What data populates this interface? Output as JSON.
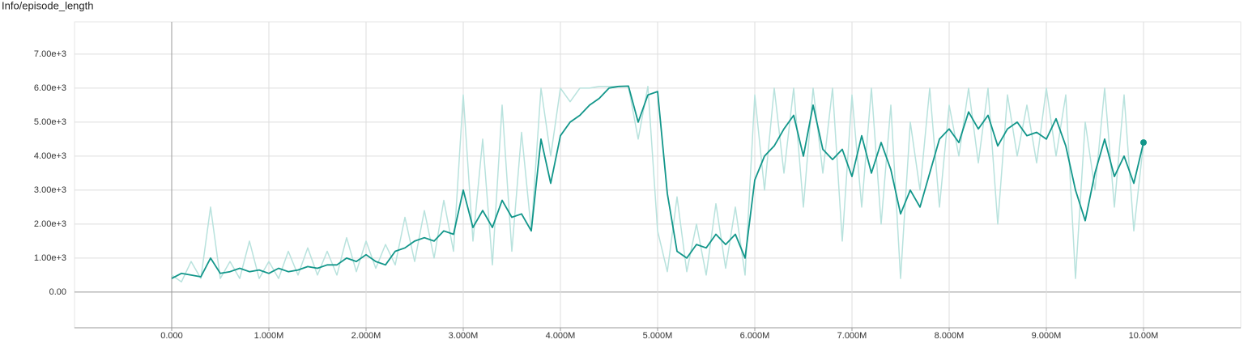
{
  "chart_data": {
    "type": "line",
    "title": "Info/episode_length",
    "x": [
      0,
      100000,
      200000,
      300000,
      400000,
      500000,
      600000,
      700000,
      800000,
      900000,
      1000000,
      1100000,
      1200000,
      1300000,
      1400000,
      1500000,
      1600000,
      1700000,
      1800000,
      1900000,
      2000000,
      2100000,
      2200000,
      2300000,
      2400000,
      2500000,
      2600000,
      2700000,
      2800000,
      2900000,
      3000000,
      3100000,
      3200000,
      3300000,
      3400000,
      3500000,
      3600000,
      3700000,
      3800000,
      3900000,
      4000000,
      4100000,
      4200000,
      4300000,
      4400000,
      4500000,
      4600000,
      4700000,
      4800000,
      4900000,
      5000000,
      5100000,
      5200000,
      5300000,
      5400000,
      5500000,
      5600000,
      5700000,
      5800000,
      5900000,
      6000000,
      6100000,
      6200000,
      6300000,
      6400000,
      6500000,
      6600000,
      6700000,
      6800000,
      6900000,
      7000000,
      7100000,
      7200000,
      7300000,
      7400000,
      7500000,
      7600000,
      7700000,
      7800000,
      7900000,
      8000000,
      8100000,
      8200000,
      8300000,
      8400000,
      8500000,
      8600000,
      8700000,
      8800000,
      8900000,
      9000000,
      9100000,
      9200000,
      9300000,
      9400000,
      9500000,
      9600000,
      9700000,
      9800000,
      9900000,
      10000000
    ],
    "series": [
      {
        "color": "#b8e2dd",
        "values": [
          500,
          300,
          900,
          400,
          2500,
          400,
          900,
          400,
          1500,
          400,
          900,
          400,
          1200,
          500,
          1300,
          500,
          1200,
          500,
          1600,
          600,
          1500,
          700,
          1400,
          800,
          2200,
          900,
          2400,
          1000,
          2700,
          1200,
          5800,
          1500,
          4500,
          800,
          5500,
          1200,
          4700,
          1800,
          6000,
          4000,
          6000,
          5600,
          6000,
          6000,
          6050,
          6050,
          6050,
          6050,
          4500,
          6050,
          1800,
          600,
          2800,
          600,
          2000,
          500,
          2600,
          700,
          2500,
          500,
          5800,
          3000,
          6000,
          3500,
          6000,
          2500,
          6000,
          3500,
          6000,
          1500,
          5800,
          2500,
          6000,
          2000,
          5500,
          400,
          5000,
          3000,
          6000,
          2500,
          5500,
          4000,
          6000,
          3800,
          6000,
          2000,
          5800,
          4000,
          5500,
          3800,
          6000,
          4000,
          5800,
          400,
          5000,
          3000,
          6000,
          2500,
          5800,
          1800,
          4400
        ]
      },
      {
        "color": "#12968a",
        "values": [
          400,
          550,
          500,
          450,
          1000,
          550,
          600,
          700,
          600,
          650,
          550,
          700,
          600,
          650,
          750,
          700,
          800,
          800,
          1000,
          900,
          1100,
          900,
          800,
          1200,
          1300,
          1500,
          1600,
          1500,
          1800,
          1700,
          3000,
          1900,
          2400,
          1900,
          2700,
          2200,
          2300,
          1800,
          4500,
          3200,
          4600,
          5000,
          5200,
          5500,
          5700,
          6000,
          6050,
          6060,
          5000,
          5800,
          5900,
          2900,
          1200,
          1000,
          1400,
          1300,
          1700,
          1400,
          1700,
          1000,
          3300,
          4000,
          4300,
          4800,
          5200,
          4000,
          5500,
          4200,
          3900,
          4200,
          3400,
          4600,
          3500,
          4400,
          3600,
          2300,
          3000,
          2500,
          3500,
          4500,
          4800,
          4400,
          5300,
          4800,
          5200,
          4300,
          4800,
          5000,
          4600,
          4700,
          4500,
          5100,
          4300,
          3000,
          2100,
          3500,
          4500,
          3400,
          4000,
          3200,
          4400
        ]
      }
    ],
    "xlim": [
      -1000000,
      11000000
    ],
    "xticks": [
      {
        "value": 0,
        "label": "0.000"
      },
      {
        "value": 1000000,
        "label": "1.000M"
      },
      {
        "value": 2000000,
        "label": "2.000M"
      },
      {
        "value": 3000000,
        "label": "3.000M"
      },
      {
        "value": 4000000,
        "label": "4.000M"
      },
      {
        "value": 5000000,
        "label": "5.000M"
      },
      {
        "value": 6000000,
        "label": "6.000M"
      },
      {
        "value": 7000000,
        "label": "7.000M"
      },
      {
        "value": 8000000,
        "label": "8.000M"
      },
      {
        "value": 9000000,
        "label": "9.000M"
      },
      {
        "value": 10000000,
        "label": "10.00M"
      }
    ],
    "ylim": [
      -1050,
      7950
    ],
    "yticks": [
      {
        "value": 0,
        "label": "0.00"
      },
      {
        "value": 1000,
        "label": "1.00e+3"
      },
      {
        "value": 2000,
        "label": "2.00e+3"
      },
      {
        "value": 3000,
        "label": "3.00e+3"
      },
      {
        "value": 4000,
        "label": "4.00e+3"
      },
      {
        "value": 5000,
        "label": "5.00e+3"
      },
      {
        "value": 6000,
        "label": "6.00e+3"
      },
      {
        "value": 7000,
        "label": "7.00e+3"
      }
    ],
    "grid": true
  }
}
